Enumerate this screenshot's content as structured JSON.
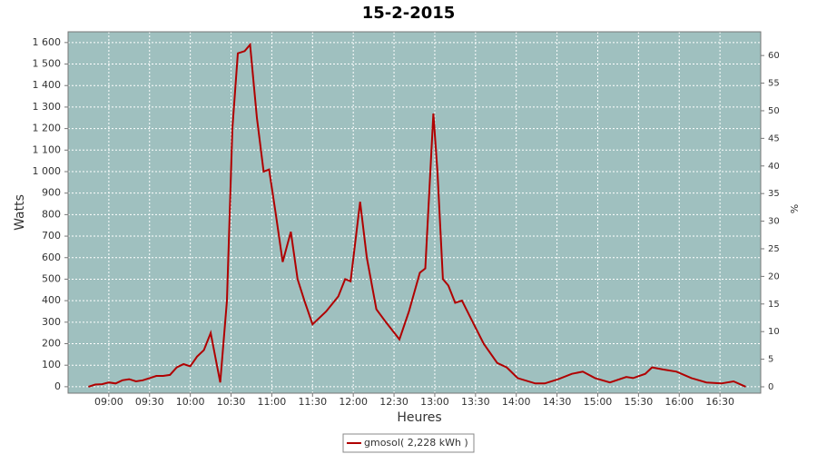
{
  "chart_data": {
    "type": "line",
    "title": "15-2-2015",
    "x_label": "Heures",
    "y_label": "Watts",
    "y2_label": "%",
    "x": [
      "08:45",
      "08:50",
      "08:55",
      "09:00",
      "09:05",
      "09:10",
      "09:15",
      "09:20",
      "09:25",
      "09:30",
      "09:35",
      "09:40",
      "09:45",
      "09:50",
      "09:55",
      "10:00",
      "10:05",
      "10:10",
      "10:15",
      "10:22",
      "10:27",
      "10:31",
      "10:35",
      "10:40",
      "10:44",
      "10:49",
      "10:54",
      "10:58",
      "11:03",
      "11:08",
      "11:14",
      "11:19",
      "11:24",
      "11:30",
      "11:40",
      "11:49",
      "11:54",
      "11:58",
      "12:05",
      "12:10",
      "12:17",
      "12:24",
      "12:34",
      "12:41",
      "12:49",
      "12:53",
      "12:59",
      "13:02",
      "13:06",
      "13:10",
      "13:15",
      "13:20",
      "13:28",
      "13:36",
      "13:46",
      "13:53",
      "14:01",
      "14:14",
      "14:21",
      "14:31",
      "14:41",
      "14:49",
      "14:58",
      "15:09",
      "15:21",
      "15:26",
      "15:35",
      "15:40",
      "15:48",
      "15:58",
      "16:09",
      "16:20",
      "16:31",
      "16:40",
      "16:49"
    ],
    "series": [
      {
        "name": "gmosol( 2,228 kWh )",
        "color": "#b00000",
        "values": [
          0,
          10,
          12,
          20,
          15,
          30,
          35,
          25,
          30,
          40,
          50,
          50,
          55,
          90,
          105,
          95,
          140,
          170,
          250,
          20,
          400,
          1200,
          1550,
          1560,
          1590,
          1250,
          1000,
          1010,
          800,
          580,
          720,
          500,
          400,
          290,
          350,
          420,
          500,
          490,
          860,
          600,
          360,
          300,
          220,
          350,
          530,
          550,
          1270,
          1000,
          500,
          470,
          390,
          400,
          300,
          200,
          110,
          90,
          40,
          15,
          15,
          35,
          60,
          70,
          40,
          20,
          45,
          40,
          60,
          90,
          80,
          70,
          40,
          20,
          15,
          25,
          0
        ]
      }
    ],
    "xlim": [
      "08:30",
      "17:00"
    ],
    "xticks": [
      "09:00",
      "09:30",
      "10:00",
      "10:30",
      "11:00",
      "11:30",
      "12:00",
      "12:30",
      "13:00",
      "13:30",
      "14:00",
      "14:30",
      "15:00",
      "15:30",
      "16:00",
      "16:30"
    ],
    "ylim": [
      -30,
      1650
    ],
    "yticks": [
      0,
      100,
      200,
      300,
      400,
      500,
      600,
      700,
      800,
      900,
      {
        "value": 1000,
        "label": "1 000"
      },
      {
        "value": 1100,
        "label": "1 100"
      },
      {
        "value": 1200,
        "label": "1 200"
      },
      {
        "value": 1300,
        "label": "1 300"
      },
      {
        "value": 1400,
        "label": "1 400"
      },
      {
        "value": 1500,
        "label": "1 500"
      },
      {
        "value": 1600,
        "label": "1 600"
      }
    ],
    "y2lim": [
      -1.15,
      64.3
    ],
    "y2ticks": [
      0,
      5,
      10,
      15,
      20,
      25,
      30,
      35,
      40,
      45,
      50,
      55,
      60
    ],
    "grid": true,
    "legend": "bottom",
    "background": "#9fc0bf"
  }
}
